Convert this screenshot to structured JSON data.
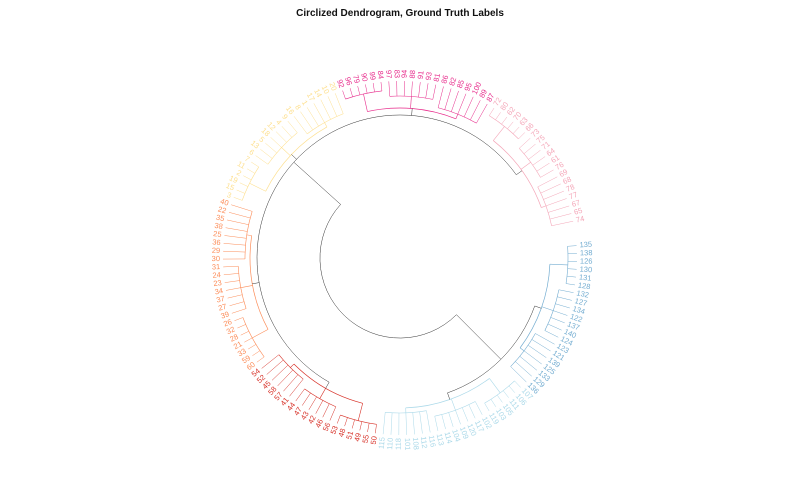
{
  "title": "Circlized Dendrogram, Ground Truth Labels",
  "chart_data": {
    "type": "circular-dendrogram",
    "start_angle_deg": -4,
    "sweep_deg": 352,
    "groups": [
      {
        "id": "sky",
        "color": "#74add1",
        "leaves": [
          "135",
          "138",
          "126",
          "130",
          "131",
          "128",
          "132",
          "127",
          "134",
          "122",
          "137",
          "140",
          "124",
          "123",
          "121",
          "139",
          "125",
          "133",
          "129",
          "136"
        ]
      },
      {
        "id": "light",
        "color": "#abd9e9",
        "leaves": [
          "107",
          "106",
          "111",
          "105",
          "103",
          "119",
          "102",
          "117",
          "120",
          "109",
          "104",
          "114",
          "113",
          "116",
          "112",
          "108",
          "101",
          "118",
          "110",
          "115"
        ]
      },
      {
        "id": "red",
        "color": "#d73027",
        "leaves": [
          "50",
          "55",
          "49",
          "51",
          "48",
          "53",
          "56",
          "46",
          "42",
          "43",
          "47",
          "44",
          "41",
          "57",
          "58",
          "45",
          "52",
          "54"
        ]
      },
      {
        "id": "orange",
        "color": "#fc8d59",
        "leaves": [
          "60",
          "59",
          "33",
          "21",
          "28",
          "32",
          "26",
          "39",
          "27",
          "37",
          "34",
          "23",
          "24",
          "31",
          "30",
          "29",
          "36",
          "25",
          "38",
          "35",
          "22",
          "40"
        ]
      },
      {
        "id": "yellow",
        "color": "#fee090",
        "leaves": [
          "3",
          "15",
          "19",
          "2",
          "11",
          "7",
          "6",
          "13",
          "5",
          "18",
          "12",
          "4",
          "9",
          "16",
          "8",
          "1",
          "17",
          "14",
          "10",
          "20"
        ]
      },
      {
        "id": "pink",
        "color": "#e7298a",
        "leaves": [
          "92",
          "96",
          "79",
          "90",
          "99",
          "84",
          "97",
          "83",
          "94",
          "88",
          "91",
          "93",
          "81",
          "86",
          "82",
          "85",
          "95",
          "100",
          "89",
          "87"
        ]
      },
      {
        "id": "rose",
        "color": "#f4a6b8",
        "leaves": [
          "72",
          "80",
          "62",
          "70",
          "63",
          "66",
          "73",
          "75",
          "71",
          "64",
          "61",
          "76",
          "69",
          "68",
          "78",
          "77",
          "67",
          "65",
          "74"
        ]
      }
    ],
    "links_color": "#333333"
  }
}
